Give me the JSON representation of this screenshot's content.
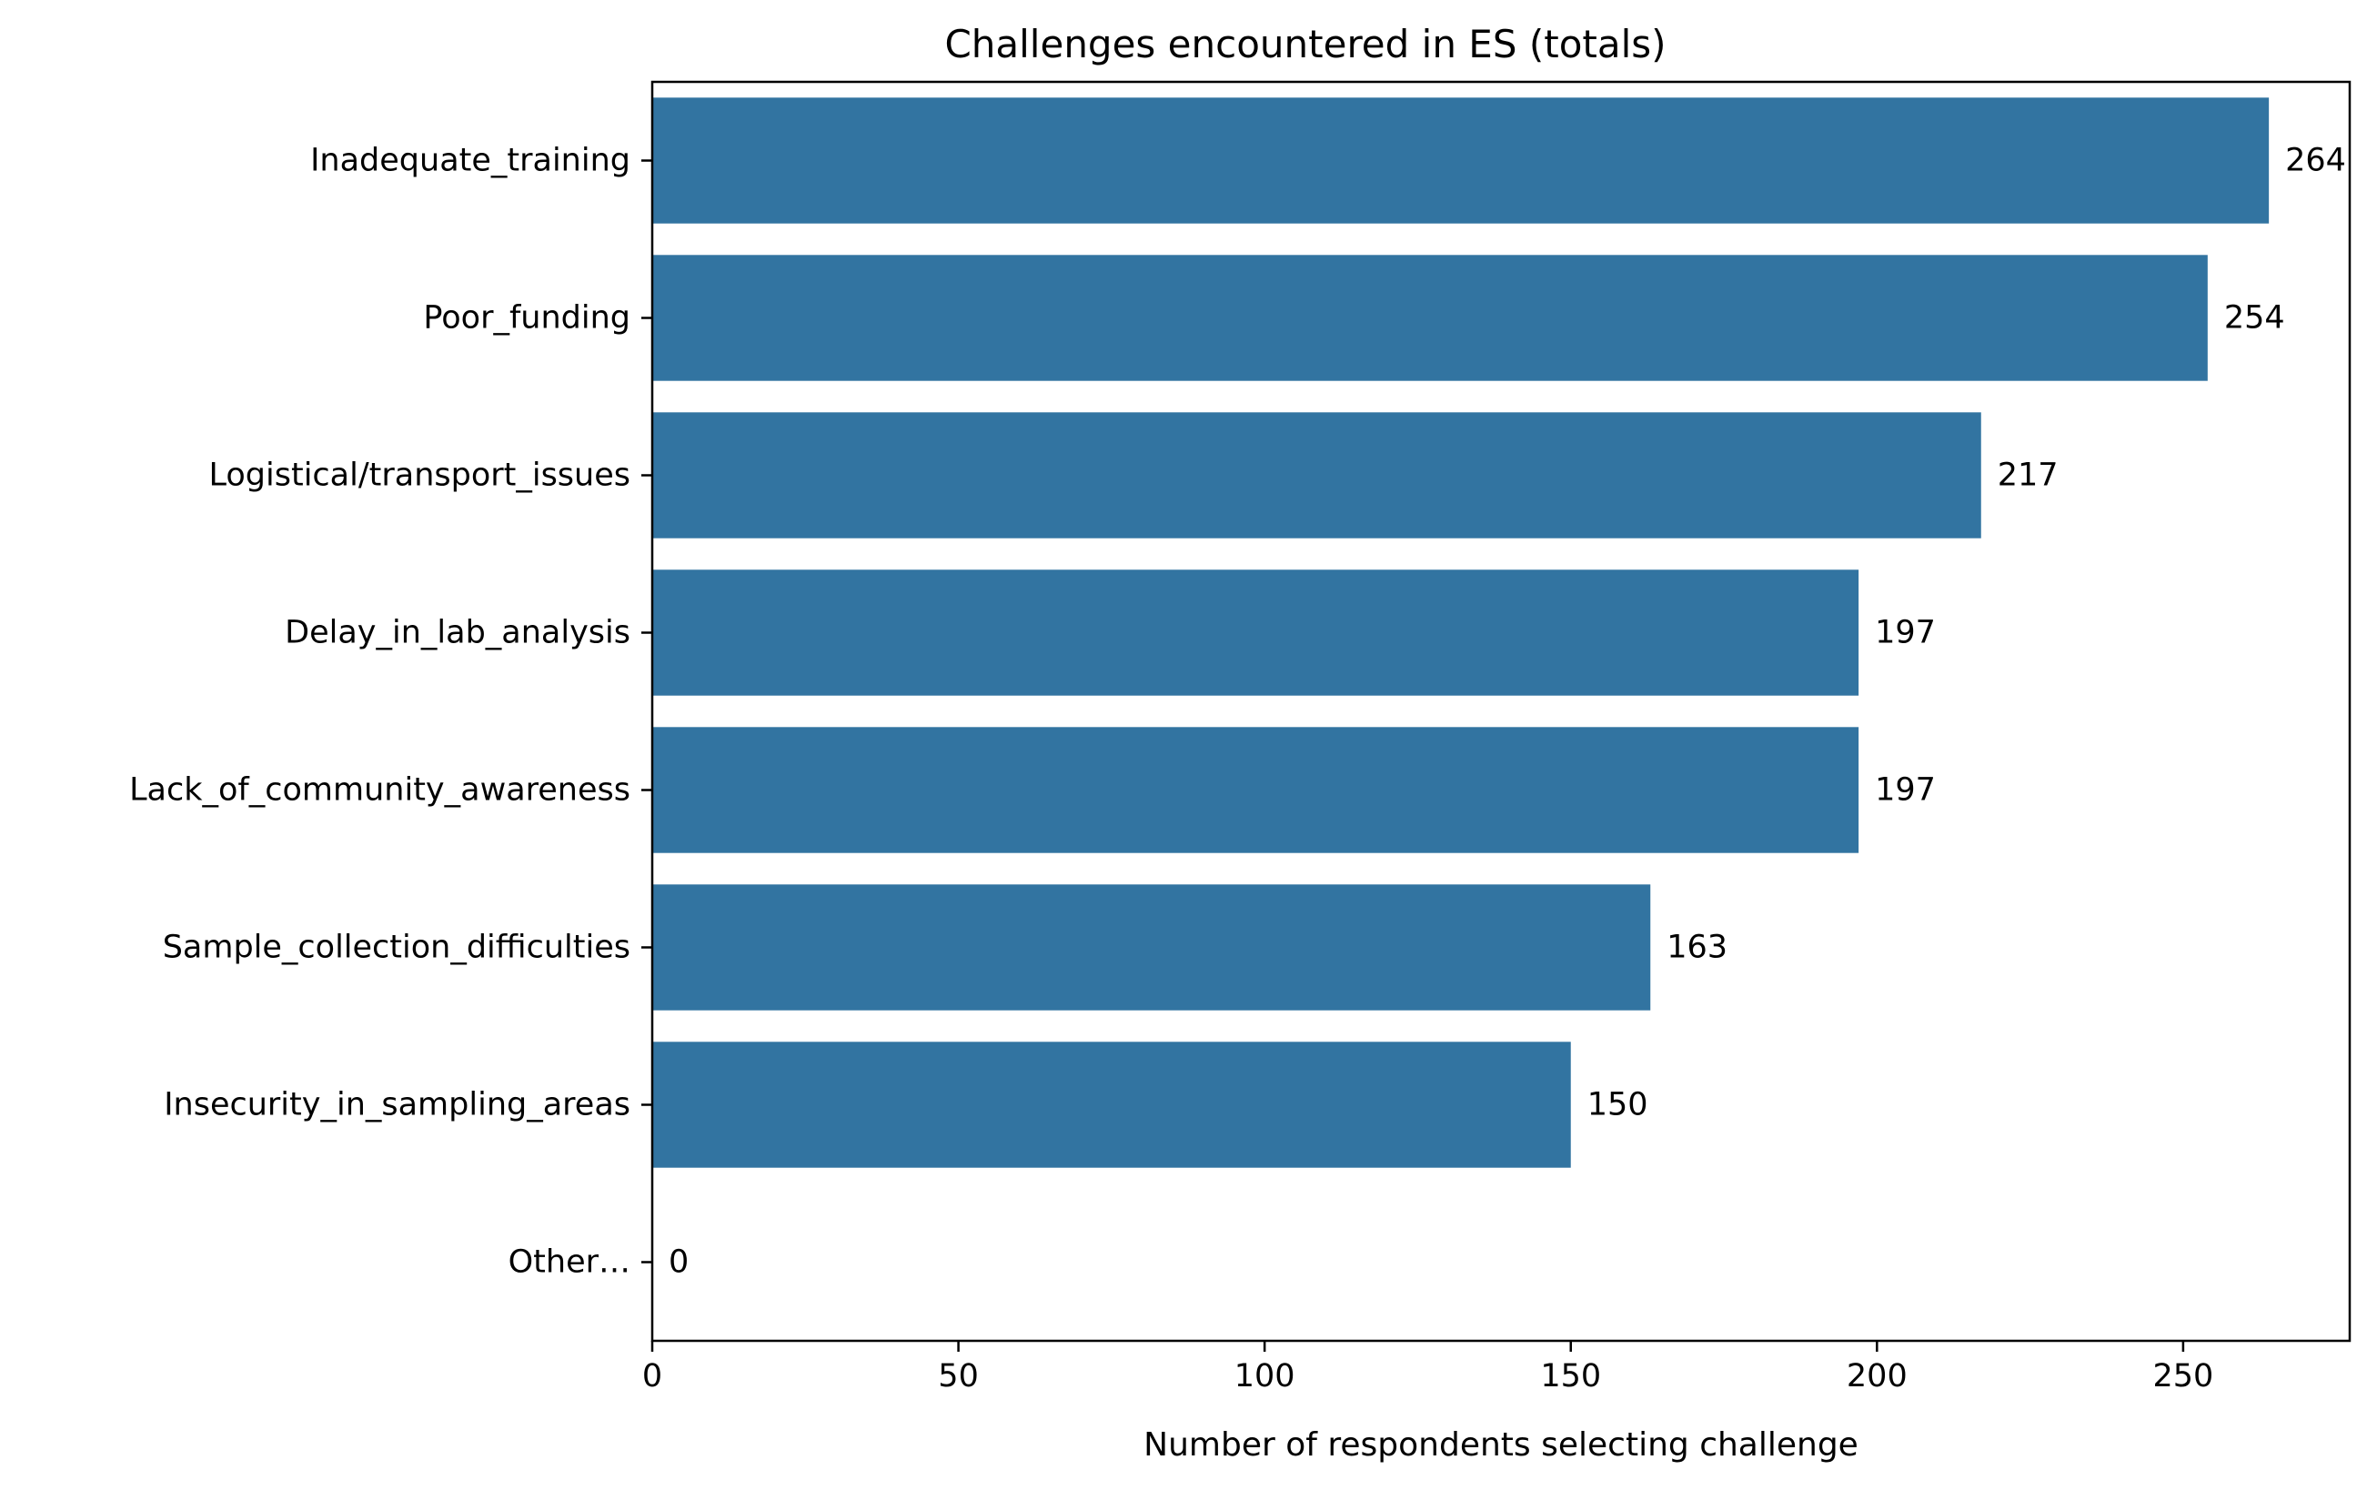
{
  "chart_data": {
    "type": "bar",
    "orientation": "horizontal",
    "title": "Challenges encountered in ES (totals)",
    "xlabel": "Number of respondents selecting challenge",
    "ylabel": "",
    "categories": [
      "Inadequate_training",
      "Poor_funding",
      "Logistical/transport_issues",
      "Delay_in_lab_analysis",
      "Lack_of_community_awareness",
      "Sample_collection_difficulties",
      "Insecurity_in_sampling_areas",
      "Other…"
    ],
    "values": [
      264,
      254,
      217,
      197,
      197,
      163,
      150,
      0
    ],
    "xlim": [
      0,
      277.2
    ],
    "xticks": [
      0,
      50,
      100,
      150,
      200,
      250
    ],
    "bar_color": "#3274a1",
    "grid": false,
    "legend": "none"
  }
}
